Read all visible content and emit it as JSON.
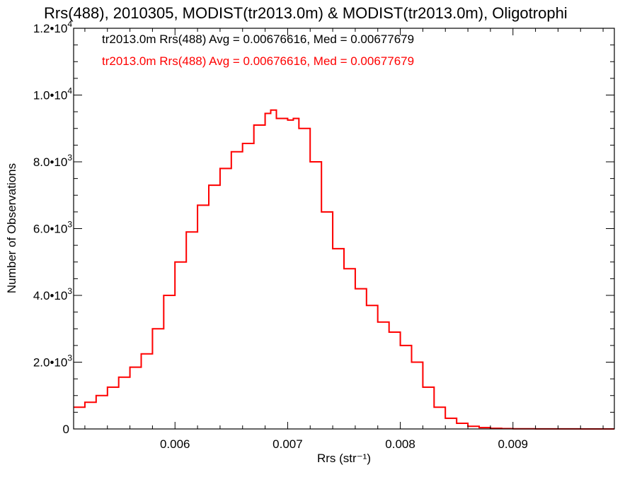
{
  "chart_data": {
    "type": "line",
    "title": "Rrs(488), 2010305, MODIST(tr2013.0m) & MODIST(tr2013.0m), Oligotrophi",
    "xlabel": "Rrs (str⁻¹)",
    "ylabel": "Number of Observations",
    "xlim": [
      0.0051,
      0.0099
    ],
    "ylim": [
      0,
      12000
    ],
    "x_ticks": [
      0.006,
      0.007,
      0.008,
      0.009
    ],
    "x_tick_labels": [
      "0.006",
      "0.007",
      "0.008",
      "0.009"
    ],
    "y_ticks": [
      0,
      2000,
      4000,
      6000,
      8000,
      10000,
      12000
    ],
    "y_tick_labels": [
      {
        "mantissa": "0",
        "exp": ""
      },
      {
        "mantissa": "2.0•10",
        "exp": "3"
      },
      {
        "mantissa": "4.0•10",
        "exp": "3"
      },
      {
        "mantissa": "6.0•10",
        "exp": "3"
      },
      {
        "mantissa": "8.0•10",
        "exp": "3"
      },
      {
        "mantissa": "1.0•10",
        "exp": "4"
      },
      {
        "mantissa": "1.2•10",
        "exp": "4"
      }
    ],
    "grid": false,
    "legend_position": "top-left",
    "series": [
      {
        "name": "tr2013.0m Rrs(488) Avg = 0.00676616, Med = 0.00677679",
        "color": "#000000",
        "x": [
          0.0051,
          0.0052,
          0.0053,
          0.0054,
          0.0055,
          0.0056,
          0.0057,
          0.0058,
          0.0059,
          0.006,
          0.0061,
          0.0062,
          0.0063,
          0.0064,
          0.0065,
          0.0066,
          0.0067,
          0.0068,
          0.00685,
          0.0069,
          0.007,
          0.00705,
          0.0071,
          0.0072,
          0.0073,
          0.0074,
          0.0075,
          0.0076,
          0.0077,
          0.0078,
          0.0079,
          0.008,
          0.0081,
          0.0082,
          0.0083,
          0.0084,
          0.0085,
          0.0086,
          0.0087,
          0.0088,
          0.0089,
          0.009,
          0.0092,
          0.0094,
          0.0096,
          0.0099
        ],
        "y": [
          650,
          800,
          1000,
          1250,
          1550,
          1850,
          2250,
          3000,
          4000,
          5000,
          5900,
          6700,
          7300,
          7800,
          8300,
          8550,
          9100,
          9450,
          9550,
          9300,
          9250,
          9300,
          9000,
          8000,
          6500,
          5400,
          4800,
          4200,
          3700,
          3200,
          2900,
          2500,
          2000,
          1250,
          650,
          320,
          170,
          80,
          40,
          20,
          10,
          5,
          3,
          2,
          1,
          0
        ]
      },
      {
        "name": "tr2013.0m Rrs(488) Avg = 0.00676616, Med = 0.00677679",
        "color": "#ff0000",
        "x": [
          0.0051,
          0.0052,
          0.0053,
          0.0054,
          0.0055,
          0.0056,
          0.0057,
          0.0058,
          0.0059,
          0.006,
          0.0061,
          0.0062,
          0.0063,
          0.0064,
          0.0065,
          0.0066,
          0.0067,
          0.0068,
          0.00685,
          0.0069,
          0.007,
          0.00705,
          0.0071,
          0.0072,
          0.0073,
          0.0074,
          0.0075,
          0.0076,
          0.0077,
          0.0078,
          0.0079,
          0.008,
          0.0081,
          0.0082,
          0.0083,
          0.0084,
          0.0085,
          0.0086,
          0.0087,
          0.0088,
          0.0089,
          0.009,
          0.0092,
          0.0094,
          0.0096,
          0.0099
        ],
        "y": [
          650,
          800,
          1000,
          1250,
          1550,
          1850,
          2250,
          3000,
          4000,
          5000,
          5900,
          6700,
          7300,
          7800,
          8300,
          8550,
          9100,
          9450,
          9550,
          9300,
          9250,
          9300,
          9000,
          8000,
          6500,
          5400,
          4800,
          4200,
          3700,
          3200,
          2900,
          2500,
          2000,
          1250,
          650,
          320,
          170,
          80,
          40,
          20,
          10,
          5,
          3,
          2,
          1,
          0
        ]
      }
    ]
  }
}
